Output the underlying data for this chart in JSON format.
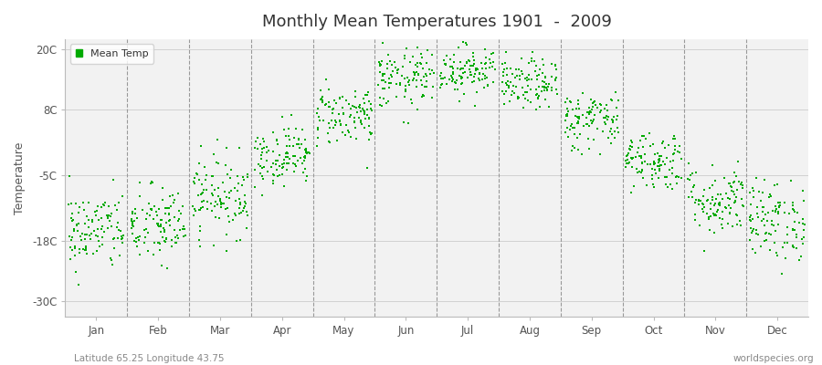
{
  "title": "Monthly Mean Temperatures 1901  -  2009",
  "ylabel": "Temperature",
  "yticks": [
    -30,
    -18,
    -5,
    8,
    20
  ],
  "ytick_labels": [
    "-30C",
    "-18C",
    "-5C",
    "8C",
    "20C"
  ],
  "ylim": [
    -33,
    22
  ],
  "xlabel_months": [
    "Jan",
    "Feb",
    "Mar",
    "Apr",
    "May",
    "Jun",
    "Jul",
    "Aug",
    "Sep",
    "Oct",
    "Nov",
    "Dec"
  ],
  "dot_color": "#00aa00",
  "bg_color": "#ffffff",
  "plot_bg_color": "#f2f2f2",
  "legend_label": "Mean Temp",
  "footnote_left": "Latitude 65.25 Longitude 43.75",
  "footnote_right": "worldspecies.org",
  "monthly_means": [
    -16,
    -15,
    -9,
    -1,
    7,
    14,
    16,
    13,
    6,
    -2,
    -10,
    -14
  ],
  "monthly_stds": [
    4,
    4,
    4,
    3,
    3,
    3,
    2.5,
    2.5,
    3,
    3,
    3.5,
    4
  ],
  "n_years": 109,
  "seed": 42
}
